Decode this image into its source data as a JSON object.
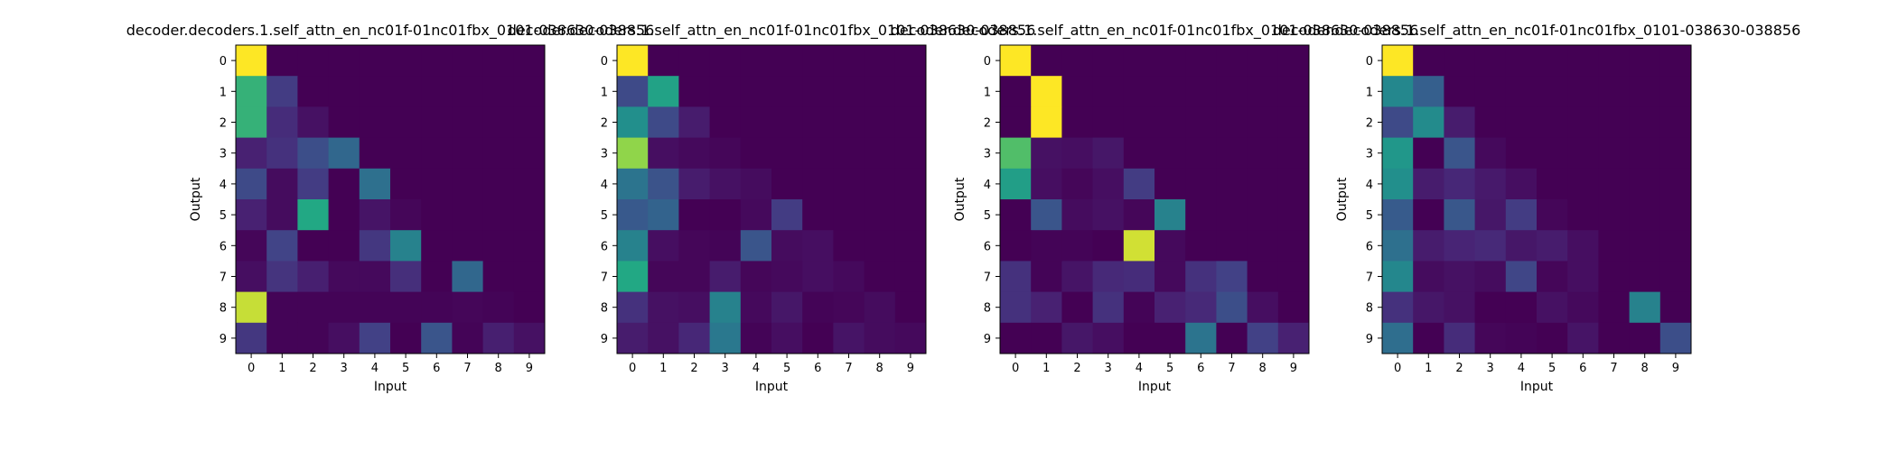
{
  "chart_data": [
    {
      "type": "heatmap",
      "title": "decoder.decoders.1.self_attn_en_nc01f-01nc01fbx_0101-038630-038856",
      "xlabel": "Input",
      "ylabel": "Output",
      "x_ticks": [
        "0",
        "1",
        "2",
        "3",
        "4",
        "5",
        "6",
        "7",
        "8",
        "9"
      ],
      "y_ticks": [
        "0",
        "1",
        "2",
        "3",
        "4",
        "5",
        "6",
        "7",
        "8",
        "9"
      ],
      "colormap": "viridis",
      "values": [
        [
          1.0,
          0,
          0,
          0,
          0,
          0,
          0,
          0,
          0,
          0
        ],
        [
          0.78,
          0.22,
          0,
          0,
          0,
          0,
          0,
          0,
          0,
          0
        ],
        [
          0.78,
          0.16,
          0.06,
          0,
          0,
          0,
          0,
          0,
          0,
          0
        ],
        [
          0.12,
          0.18,
          0.3,
          0.42,
          0,
          0,
          0,
          0,
          0,
          0
        ],
        [
          0.28,
          0.04,
          0.22,
          0.0,
          0.46,
          0,
          0,
          0,
          0,
          0
        ],
        [
          0.12,
          0.04,
          0.75,
          0.0,
          0.07,
          0.02,
          0,
          0,
          0,
          0
        ],
        [
          0.02,
          0.25,
          0.0,
          0.0,
          0.2,
          0.55,
          0.0,
          0,
          0,
          0
        ],
        [
          0.05,
          0.19,
          0.11,
          0.03,
          0.03,
          0.17,
          0.0,
          0.42,
          0,
          0
        ],
        [
          0.95,
          0.01,
          0.01,
          0.01,
          0.01,
          0.01,
          0.01,
          0.02,
          0.01,
          0
        ],
        [
          0.2,
          0.01,
          0.01,
          0.05,
          0.24,
          0.0,
          0.33,
          0.01,
          0.11,
          0.06
        ]
      ]
    },
    {
      "type": "heatmap",
      "title": "decoder.decoders.1.self_attn_en_nc01f-01nc01fbx_0101-038630-038856",
      "xlabel": "Input",
      "ylabel": "",
      "x_ticks": [
        "0",
        "1",
        "2",
        "3",
        "4",
        "5",
        "6",
        "7",
        "8",
        "9"
      ],
      "y_ticks": [
        "0",
        "1",
        "2",
        "3",
        "4",
        "5",
        "6",
        "7",
        "8",
        "9"
      ],
      "colormap": "viridis",
      "values": [
        [
          1.0,
          0,
          0,
          0,
          0,
          0,
          0,
          0,
          0,
          0
        ],
        [
          0.28,
          0.72,
          0,
          0,
          0,
          0,
          0,
          0,
          0,
          0
        ],
        [
          0.62,
          0.28,
          0.1,
          0,
          0,
          0,
          0,
          0,
          0,
          0
        ],
        [
          0.9,
          0.05,
          0.03,
          0.02,
          0,
          0,
          0,
          0,
          0,
          0
        ],
        [
          0.48,
          0.32,
          0.1,
          0.06,
          0.04,
          0,
          0,
          0,
          0,
          0
        ],
        [
          0.35,
          0.4,
          0.0,
          0.0,
          0.03,
          0.22,
          0,
          0,
          0,
          0
        ],
        [
          0.55,
          0.05,
          0.02,
          0.01,
          0.33,
          0.04,
          0.05,
          0,
          0,
          0
        ],
        [
          0.75,
          0.02,
          0.02,
          0.1,
          0.02,
          0.03,
          0.05,
          0.03,
          0,
          0
        ],
        [
          0.18,
          0.06,
          0.05,
          0.55,
          0.03,
          0.08,
          0.01,
          0.02,
          0.04,
          0
        ],
        [
          0.1,
          0.06,
          0.14,
          0.5,
          0.01,
          0.05,
          0.0,
          0.07,
          0.04,
          0.03
        ]
      ]
    },
    {
      "type": "heatmap",
      "title": "decoder.decoders.1.self_attn_en_nc01f-01nc01fbx_0101-038630-038856",
      "xlabel": "Input",
      "ylabel": "Output",
      "x_ticks": [
        "0",
        "1",
        "2",
        "3",
        "4",
        "5",
        "6",
        "7",
        "8",
        "9"
      ],
      "y_ticks": [
        "0",
        "1",
        "2",
        "3",
        "4",
        "5",
        "6",
        "7",
        "8",
        "9"
      ],
      "colormap": "viridis",
      "values": [
        [
          1.0,
          0,
          0,
          0,
          0,
          0,
          0,
          0,
          0,
          0
        ],
        [
          0.0,
          1.0,
          0,
          0,
          0,
          0,
          0,
          0,
          0,
          0
        ],
        [
          0.0,
          1.0,
          0.0,
          0,
          0,
          0,
          0,
          0,
          0,
          0
        ],
        [
          0.82,
          0.06,
          0.05,
          0.08,
          0,
          0,
          0,
          0,
          0,
          0
        ],
        [
          0.7,
          0.05,
          0.02,
          0.05,
          0.22,
          0,
          0,
          0,
          0,
          0
        ],
        [
          0.0,
          0.33,
          0.04,
          0.06,
          0.02,
          0.55,
          0,
          0,
          0,
          0
        ],
        [
          0.0,
          0.01,
          0.01,
          0.0,
          0.96,
          0.03,
          0.0,
          0,
          0,
          0
        ],
        [
          0.18,
          0.01,
          0.07,
          0.15,
          0.16,
          0.03,
          0.18,
          0.24,
          0,
          0
        ],
        [
          0.18,
          0.12,
          0.0,
          0.18,
          0.01,
          0.12,
          0.15,
          0.3,
          0.05,
          0
        ],
        [
          0.0,
          0.0,
          0.08,
          0.05,
          0.0,
          0.0,
          0.48,
          0.0,
          0.24,
          0.12
        ]
      ]
    },
    {
      "type": "heatmap",
      "title": "decoder.decoders.1.self_attn_en_nc01f-01nc01fbx_0101-038630-038856",
      "xlabel": "Input",
      "ylabel": "Output",
      "x_ticks": [
        "0",
        "1",
        "2",
        "3",
        "4",
        "5",
        "6",
        "7",
        "8",
        "9"
      ],
      "y_ticks": [
        "0",
        "1",
        "2",
        "3",
        "4",
        "5",
        "6",
        "7",
        "8",
        "9"
      ],
      "colormap": "viridis",
      "values": [
        [
          1.0,
          0,
          0,
          0,
          0,
          0,
          0,
          0,
          0,
          0
        ],
        [
          0.58,
          0.38,
          0,
          0,
          0,
          0,
          0,
          0,
          0,
          0
        ],
        [
          0.28,
          0.6,
          0.1,
          0,
          0,
          0,
          0,
          0,
          0,
          0
        ],
        [
          0.66,
          0.0,
          0.33,
          0.03,
          0,
          0,
          0,
          0,
          0,
          0
        ],
        [
          0.62,
          0.1,
          0.14,
          0.09,
          0.05,
          0,
          0,
          0,
          0,
          0
        ],
        [
          0.36,
          0.0,
          0.34,
          0.08,
          0.22,
          0.02,
          0,
          0,
          0,
          0
        ],
        [
          0.46,
          0.1,
          0.13,
          0.15,
          0.08,
          0.1,
          0.05,
          0,
          0,
          0
        ],
        [
          0.58,
          0.04,
          0.06,
          0.04,
          0.26,
          0.02,
          0.05,
          0.0,
          0,
          0
        ],
        [
          0.18,
          0.08,
          0.06,
          0.0,
          0.0,
          0.06,
          0.03,
          0.0,
          0.55,
          0
        ],
        [
          0.45,
          0.0,
          0.16,
          0.02,
          0.01,
          0.0,
          0.07,
          0.0,
          0.0,
          0.3
        ]
      ]
    }
  ]
}
